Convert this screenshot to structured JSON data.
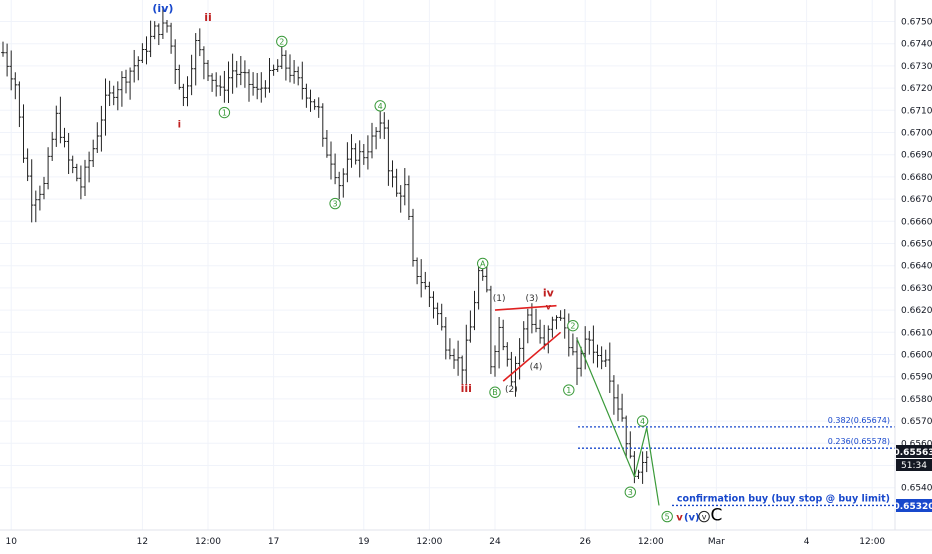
{
  "chart_data": {
    "type": "ohlc",
    "y_axis": {
      "min": 0.652,
      "max": 0.676,
      "ticks": [
        "0.67500",
        "0.67400",
        "0.67300",
        "0.67200",
        "0.67100",
        "0.67000",
        "0.66900",
        "0.66800",
        "0.66700",
        "0.66600",
        "0.66500",
        "0.66400",
        "0.66300",
        "0.66200",
        "0.66100",
        "0.66000",
        "0.65900",
        "0.65800",
        "0.65700",
        "0.65600",
        "0.65500",
        "0.65400"
      ],
      "current_price": "0.65563",
      "countdown": "51:34",
      "level_label": "0.65320",
      "current_price_color": "#131722",
      "level_label_color": "#1848cc"
    },
    "x_axis": {
      "ticks": [
        {
          "label": "10",
          "i": 2
        },
        {
          "label": "12",
          "i": 34
        },
        {
          "label": "12:00",
          "i": 50
        },
        {
          "label": "17",
          "i": 66
        },
        {
          "label": "19",
          "i": 88
        },
        {
          "label": "12:00",
          "i": 104
        },
        {
          "label": "24",
          "i": 120
        },
        {
          "label": "26",
          "i": 142
        },
        {
          "label": "12:00",
          "i": 158
        },
        {
          "label": "Mar",
          "i": 174
        },
        {
          "label": "4",
          "i": 196
        },
        {
          "label": "12:00",
          "i": 212
        }
      ]
    },
    "keypoints": [
      [
        0,
        0.6736
      ],
      [
        3,
        0.6722
      ],
      [
        5,
        0.669
      ],
      [
        7,
        0.667
      ],
      [
        10,
        0.6676
      ],
      [
        13,
        0.6707
      ],
      [
        16,
        0.6687
      ],
      [
        19,
        0.6676
      ],
      [
        22,
        0.6693
      ],
      [
        25,
        0.6714
      ],
      [
        28,
        0.6721
      ],
      [
        31,
        0.6728
      ],
      [
        34,
        0.6735
      ],
      [
        37,
        0.6746
      ],
      [
        40,
        0.6748
      ],
      [
        42,
        0.673
      ],
      [
        44,
        0.6715
      ],
      [
        47,
        0.674
      ],
      [
        50,
        0.6728
      ],
      [
        53,
        0.6718
      ],
      [
        56,
        0.6728
      ],
      [
        59,
        0.6724
      ],
      [
        62,
        0.6718
      ],
      [
        65,
        0.6725
      ],
      [
        68,
        0.6732
      ],
      [
        71,
        0.6725
      ],
      [
        74,
        0.6718
      ],
      [
        77,
        0.671
      ],
      [
        78,
        0.6695
      ],
      [
        80,
        0.6688
      ],
      [
        82,
        0.6677
      ],
      [
        85,
        0.669
      ],
      [
        88,
        0.669
      ],
      [
        91,
        0.67
      ],
      [
        93,
        0.6703
      ],
      [
        94,
        0.6685
      ],
      [
        96,
        0.6672
      ],
      [
        98,
        0.6675
      ],
      [
        99,
        0.666
      ],
      [
        100,
        0.664
      ],
      [
        103,
        0.663
      ],
      [
        106,
        0.6618
      ],
      [
        108,
        0.6605
      ],
      [
        110,
        0.66
      ],
      [
        112,
        0.6595
      ],
      [
        114,
        0.6612
      ],
      [
        116,
        0.6637
      ],
      [
        118,
        0.6628
      ],
      [
        119,
        0.6596
      ],
      [
        121,
        0.6612
      ],
      [
        123,
        0.66
      ],
      [
        124,
        0.659
      ],
      [
        126,
        0.6603
      ],
      [
        128,
        0.6618
      ],
      [
        130,
        0.6612
      ],
      [
        132,
        0.6603
      ],
      [
        133,
        0.661
      ],
      [
        135,
        0.6618
      ],
      [
        137,
        0.6612
      ],
      [
        139,
        0.66
      ],
      [
        140,
        0.6591
      ],
      [
        141,
        0.6602
      ],
      [
        143,
        0.6607
      ],
      [
        145,
        0.6599
      ],
      [
        147,
        0.66
      ],
      [
        149,
        0.6582
      ],
      [
        151,
        0.6572
      ],
      [
        153,
        0.6552
      ],
      [
        155,
        0.6544
      ],
      [
        156,
        0.6553
      ],
      [
        157,
        0.6556
      ]
    ],
    "level_lines": [
      {
        "label": "0.382(0.65674)",
        "price": 0.65674,
        "color": "#1848cc"
      },
      {
        "label": "0.236(0.65578)",
        "price": 0.65578,
        "color": "#1848cc"
      },
      {
        "label": "confirmation buy (buy stop @ buy limit)",
        "price": 0.6532,
        "color": "#1848cc"
      }
    ],
    "trendlines": [
      {
        "from": [
          120,
          0.662
        ],
        "to": [
          135,
          0.6622
        ],
        "color": "#e02020"
      },
      {
        "from": [
          122,
          0.6588
        ],
        "to": [
          136,
          0.661
        ],
        "color": "#e02020"
      }
    ],
    "projection": {
      "points": [
        [
          140,
          0.6607
        ],
        [
          154,
          0.6545
        ],
        [
          157,
          0.6567
        ],
        [
          160,
          0.6532
        ]
      ],
      "color": "#3a9a3a"
    },
    "labels": [
      {
        "text": "(iv)",
        "i": 39,
        "p": 0.6756,
        "color": "#1848cc",
        "weight": "bold",
        "size": 11
      },
      {
        "text": "ii",
        "i": 50,
        "p": 0.6752,
        "color": "#c02020",
        "weight": "bold",
        "size": 11
      },
      {
        "text": "i",
        "i": 43,
        "p": 0.6704,
        "color": "#c02020",
        "weight": "bold",
        "size": 10
      },
      {
        "text": "1",
        "i": 54,
        "p": 0.6709,
        "color": "#3a9a3a",
        "circle": true
      },
      {
        "text": "2",
        "i": 68,
        "p": 0.6741,
        "color": "#3a9a3a",
        "circle": true
      },
      {
        "text": "3",
        "i": 81,
        "p": 0.6668,
        "color": "#3a9a3a",
        "circle": true
      },
      {
        "text": "4",
        "i": 92,
        "p": 0.6712,
        "color": "#3a9a3a",
        "circle": true
      },
      {
        "text": "iii",
        "i": 113,
        "p": 0.6585,
        "color": "#c02020",
        "weight": "bold",
        "size": 11
      },
      {
        "text": "A",
        "i": 117,
        "p": 0.6641,
        "color": "#3a9a3a",
        "circle": true
      },
      {
        "text": "B",
        "i": 120,
        "p": 0.6583,
        "color": "#3a9a3a",
        "circle": true
      },
      {
        "text": "(1)",
        "i": 121,
        "p": 0.6626,
        "color": "#333333",
        "size": 9
      },
      {
        "text": "(2)",
        "i": 124,
        "p": 0.6585,
        "color": "#333333",
        "size": 9
      },
      {
        "text": "(3)",
        "i": 129,
        "p": 0.6626,
        "color": "#333333",
        "size": 9
      },
      {
        "text": "(4)",
        "i": 130,
        "p": 0.6595,
        "color": "#333333",
        "size": 9
      },
      {
        "text": "iv",
        "i": 133,
        "p": 0.6628,
        "color": "#c02020",
        "weight": "bold",
        "size": 11
      },
      {
        "text": "v",
        "i": 133,
        "p": 0.6622,
        "color": "#c02020",
        "weight": "bold",
        "size": 8
      },
      {
        "text": "1",
        "i": 138,
        "p": 0.6584,
        "color": "#3a9a3a",
        "circle": true
      },
      {
        "text": "2",
        "i": 139,
        "p": 0.6613,
        "color": "#3a9a3a",
        "circle": true
      },
      {
        "text": "3",
        "i": 153,
        "p": 0.6538,
        "color": "#3a9a3a",
        "circle": true
      },
      {
        "text": "4",
        "i": 156,
        "p": 0.657,
        "color": "#3a9a3a",
        "circle": true
      },
      {
        "text": "5",
        "i": 162,
        "p": 0.6527,
        "color": "#3a9a3a",
        "circle": true
      },
      {
        "text": "v",
        "i": 165,
        "p": 0.6527,
        "color": "#c02020",
        "weight": "bold",
        "size": 10
      },
      {
        "text": "(v)",
        "i": 168,
        "p": 0.6527,
        "color": "#1848cc",
        "weight": "bold",
        "size": 10
      },
      {
        "text": "v",
        "i": 171,
        "p": 0.6527,
        "color": "#222222",
        "circle": true
      },
      {
        "text": "C",
        "i": 174,
        "p": 0.6527,
        "color": "#000000",
        "size": 17
      }
    ],
    "colors": {
      "bars": "#222222",
      "grid": "#f0f3fa",
      "axis_text": "#131722"
    }
  }
}
